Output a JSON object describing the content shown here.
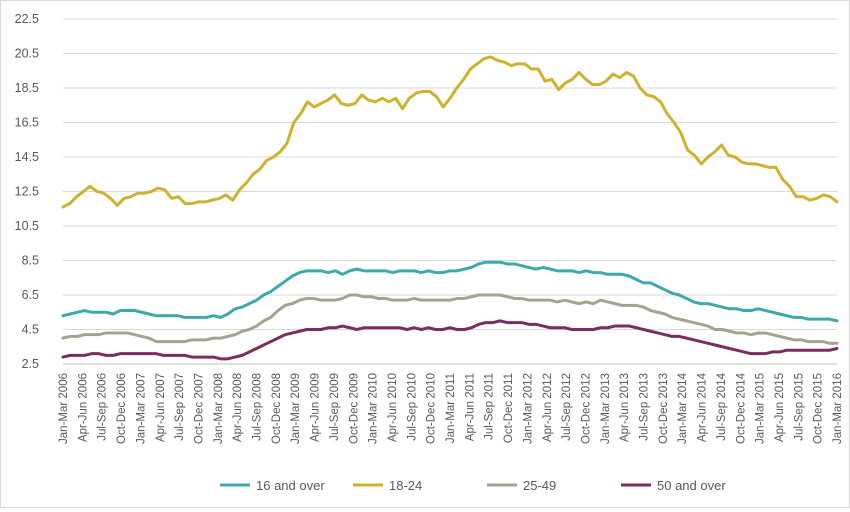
{
  "chart_data": {
    "type": "line",
    "title": "",
    "xlabel": "",
    "ylabel": "",
    "ylim": [
      2.5,
      22.5
    ],
    "y_ticks": [
      "2.5",
      "4.5",
      "6.5",
      "8.5",
      "10.5",
      "12.5",
      "14.5",
      "16.5",
      "18.5",
      "20.5",
      "22.5"
    ],
    "grid": "horizontal",
    "legend_position": "bottom",
    "x_tick_labels": [
      "Jan-Mar 2006",
      "Apr-Jun 2006",
      "Jul-Sep 2006",
      "Oct-Dec 2006",
      "Jan-Mar 2007",
      "Apr-Jun 2007",
      "Jul-Sep 2007",
      "Oct-Dec 2007",
      "Jan-Mar 2008",
      "Apr-Jun 2008",
      "Jul-Sep 2008",
      "Oct-Dec 2008",
      "Jan-Mar 2009",
      "Apr-Jun 2009",
      "Jul-Sep 2009",
      "Oct-Dec 2009",
      "Jan-Mar 2010",
      "Apr-Jun 2010",
      "Jul-Sep 2010",
      "Oct-Dec 2010",
      "Jan-Mar 2011",
      "Apr-Jun 2011",
      "Jul-Sep 2011",
      "Oct-Dec 2011",
      "Jan-Mar 2012",
      "Apr-Jun 2012",
      "Jul-Sep 2012",
      "Oct-Dec 2012",
      "Jan-Mar 2013",
      "Apr-Jun 2013",
      "Jul-Sep 2013",
      "Oct-Dec 2013",
      "Jan-Mar 2014",
      "Apr-Jun 2014",
      "Jul-Sep 2014",
      "Oct-Dec 2014",
      "Jan-Mar 2015",
      "Apr-Jun 2015",
      "Jul-Sep 2015",
      "Oct-Dec 2015",
      "Jan-Mar 2016"
    ],
    "series": [
      {
        "name": "16 and over",
        "color": "#3fa9a9",
        "values": [
          5.3,
          5.4,
          5.5,
          5.6,
          5.5,
          5.5,
          5.5,
          5.4,
          5.6,
          5.6,
          5.6,
          5.5,
          5.4,
          5.3,
          5.3,
          5.3,
          5.3,
          5.2,
          5.2,
          5.2,
          5.2,
          5.3,
          5.2,
          5.4,
          5.7,
          5.8,
          6.0,
          6.2,
          6.5,
          6.7,
          7.0,
          7.3,
          7.6,
          7.8,
          7.9,
          7.9,
          7.9,
          7.8,
          7.9,
          7.7,
          7.9,
          8.0,
          7.9,
          7.9,
          7.9,
          7.9,
          7.8,
          7.9,
          7.9,
          7.9,
          7.8,
          7.9,
          7.8,
          7.8,
          7.9,
          7.9,
          8.0,
          8.1,
          8.3,
          8.4,
          8.4,
          8.4,
          8.3,
          8.3,
          8.2,
          8.1,
          8.0,
          8.1,
          8.0,
          7.9,
          7.9,
          7.9,
          7.8,
          7.9,
          7.8,
          7.8,
          7.7,
          7.7,
          7.7,
          7.6,
          7.4,
          7.2,
          7.2,
          7.0,
          6.8,
          6.6,
          6.5,
          6.3,
          6.1,
          6.0,
          6.0,
          5.9,
          5.8,
          5.7,
          5.7,
          5.6,
          5.6,
          5.7,
          5.6,
          5.5,
          5.4,
          5.3,
          5.2,
          5.2,
          5.1,
          5.1,
          5.1,
          5.1,
          5.0
        ]
      },
      {
        "name": "18-24",
        "color": "#ccb22e",
        "values": [
          11.6,
          11.8,
          12.2,
          12.5,
          12.8,
          12.5,
          12.4,
          12.1,
          11.7,
          12.1,
          12.2,
          12.4,
          12.4,
          12.5,
          12.7,
          12.6,
          12.1,
          12.2,
          11.8,
          11.8,
          11.9,
          11.9,
          12.0,
          12.1,
          12.3,
          12.0,
          12.6,
          13.0,
          13.5,
          13.8,
          14.3,
          14.5,
          14.8,
          15.3,
          16.5,
          17.0,
          17.7,
          17.4,
          17.6,
          17.8,
          18.1,
          17.6,
          17.5,
          17.6,
          18.1,
          17.8,
          17.7,
          17.9,
          17.7,
          17.9,
          17.3,
          17.9,
          18.2,
          18.3,
          18.3,
          18.0,
          17.4,
          17.9,
          18.5,
          19.0,
          19.6,
          19.9,
          20.2,
          20.3,
          20.1,
          20.0,
          19.8,
          19.9,
          19.9,
          19.6,
          19.6,
          18.9,
          19.0,
          18.4,
          18.8,
          19.0,
          19.4,
          19.0,
          18.7,
          18.7,
          18.9,
          19.3,
          19.1,
          19.4,
          19.2,
          18.5,
          18.1,
          18.0,
          17.7,
          17.0,
          16.5,
          15.9,
          14.9,
          14.6,
          14.1,
          14.5,
          14.8,
          15.2,
          14.6,
          14.5,
          14.2,
          14.1,
          14.1,
          14.0,
          13.9,
          13.9,
          13.2,
          12.8,
          12.2,
          12.2,
          12.0,
          12.1,
          12.3,
          12.2,
          11.9
        ]
      },
      {
        "name": "25-49",
        "color": "#a3a390",
        "values": [
          4.0,
          4.1,
          4.1,
          4.2,
          4.2,
          4.2,
          4.3,
          4.3,
          4.3,
          4.3,
          4.2,
          4.1,
          4.0,
          3.8,
          3.8,
          3.8,
          3.8,
          3.8,
          3.9,
          3.9,
          3.9,
          4.0,
          4.0,
          4.1,
          4.2,
          4.4,
          4.5,
          4.7,
          5.0,
          5.2,
          5.6,
          5.9,
          6.0,
          6.2,
          6.3,
          6.3,
          6.2,
          6.2,
          6.2,
          6.3,
          6.5,
          6.5,
          6.4,
          6.4,
          6.3,
          6.3,
          6.2,
          6.2,
          6.2,
          6.3,
          6.2,
          6.2,
          6.2,
          6.2,
          6.2,
          6.3,
          6.3,
          6.4,
          6.5,
          6.5,
          6.5,
          6.5,
          6.4,
          6.3,
          6.3,
          6.2,
          6.2,
          6.2,
          6.2,
          6.1,
          6.2,
          6.1,
          6.0,
          6.1,
          6.0,
          6.2,
          6.1,
          6.0,
          5.9,
          5.9,
          5.9,
          5.8,
          5.6,
          5.5,
          5.4,
          5.2,
          5.1,
          5.0,
          4.9,
          4.8,
          4.7,
          4.5,
          4.5,
          4.4,
          4.3,
          4.3,
          4.2,
          4.3,
          4.3,
          4.2,
          4.1,
          4.0,
          3.9,
          3.9,
          3.8,
          3.8,
          3.8,
          3.7,
          3.7
        ]
      },
      {
        "name": "50 and over",
        "color": "#7b2d5e",
        "values": [
          2.9,
          3.0,
          3.0,
          3.0,
          3.1,
          3.1,
          3.0,
          3.0,
          3.1,
          3.1,
          3.1,
          3.1,
          3.1,
          3.1,
          3.0,
          3.0,
          3.0,
          3.0,
          2.9,
          2.9,
          2.9,
          2.9,
          2.8,
          2.8,
          2.9,
          3.0,
          3.2,
          3.4,
          3.6,
          3.8,
          4.0,
          4.2,
          4.3,
          4.4,
          4.5,
          4.5,
          4.5,
          4.6,
          4.6,
          4.7,
          4.6,
          4.5,
          4.6,
          4.6,
          4.6,
          4.6,
          4.6,
          4.6,
          4.5,
          4.6,
          4.5,
          4.6,
          4.5,
          4.5,
          4.6,
          4.5,
          4.5,
          4.6,
          4.8,
          4.9,
          4.9,
          5.0,
          4.9,
          4.9,
          4.9,
          4.8,
          4.8,
          4.7,
          4.6,
          4.6,
          4.6,
          4.5,
          4.5,
          4.5,
          4.5,
          4.6,
          4.6,
          4.7,
          4.7,
          4.7,
          4.6,
          4.5,
          4.4,
          4.3,
          4.2,
          4.1,
          4.1,
          4.0,
          3.9,
          3.8,
          3.7,
          3.6,
          3.5,
          3.4,
          3.3,
          3.2,
          3.1,
          3.1,
          3.1,
          3.2,
          3.2,
          3.3,
          3.3,
          3.3,
          3.3,
          3.3,
          3.3,
          3.3,
          3.4
        ]
      }
    ]
  }
}
